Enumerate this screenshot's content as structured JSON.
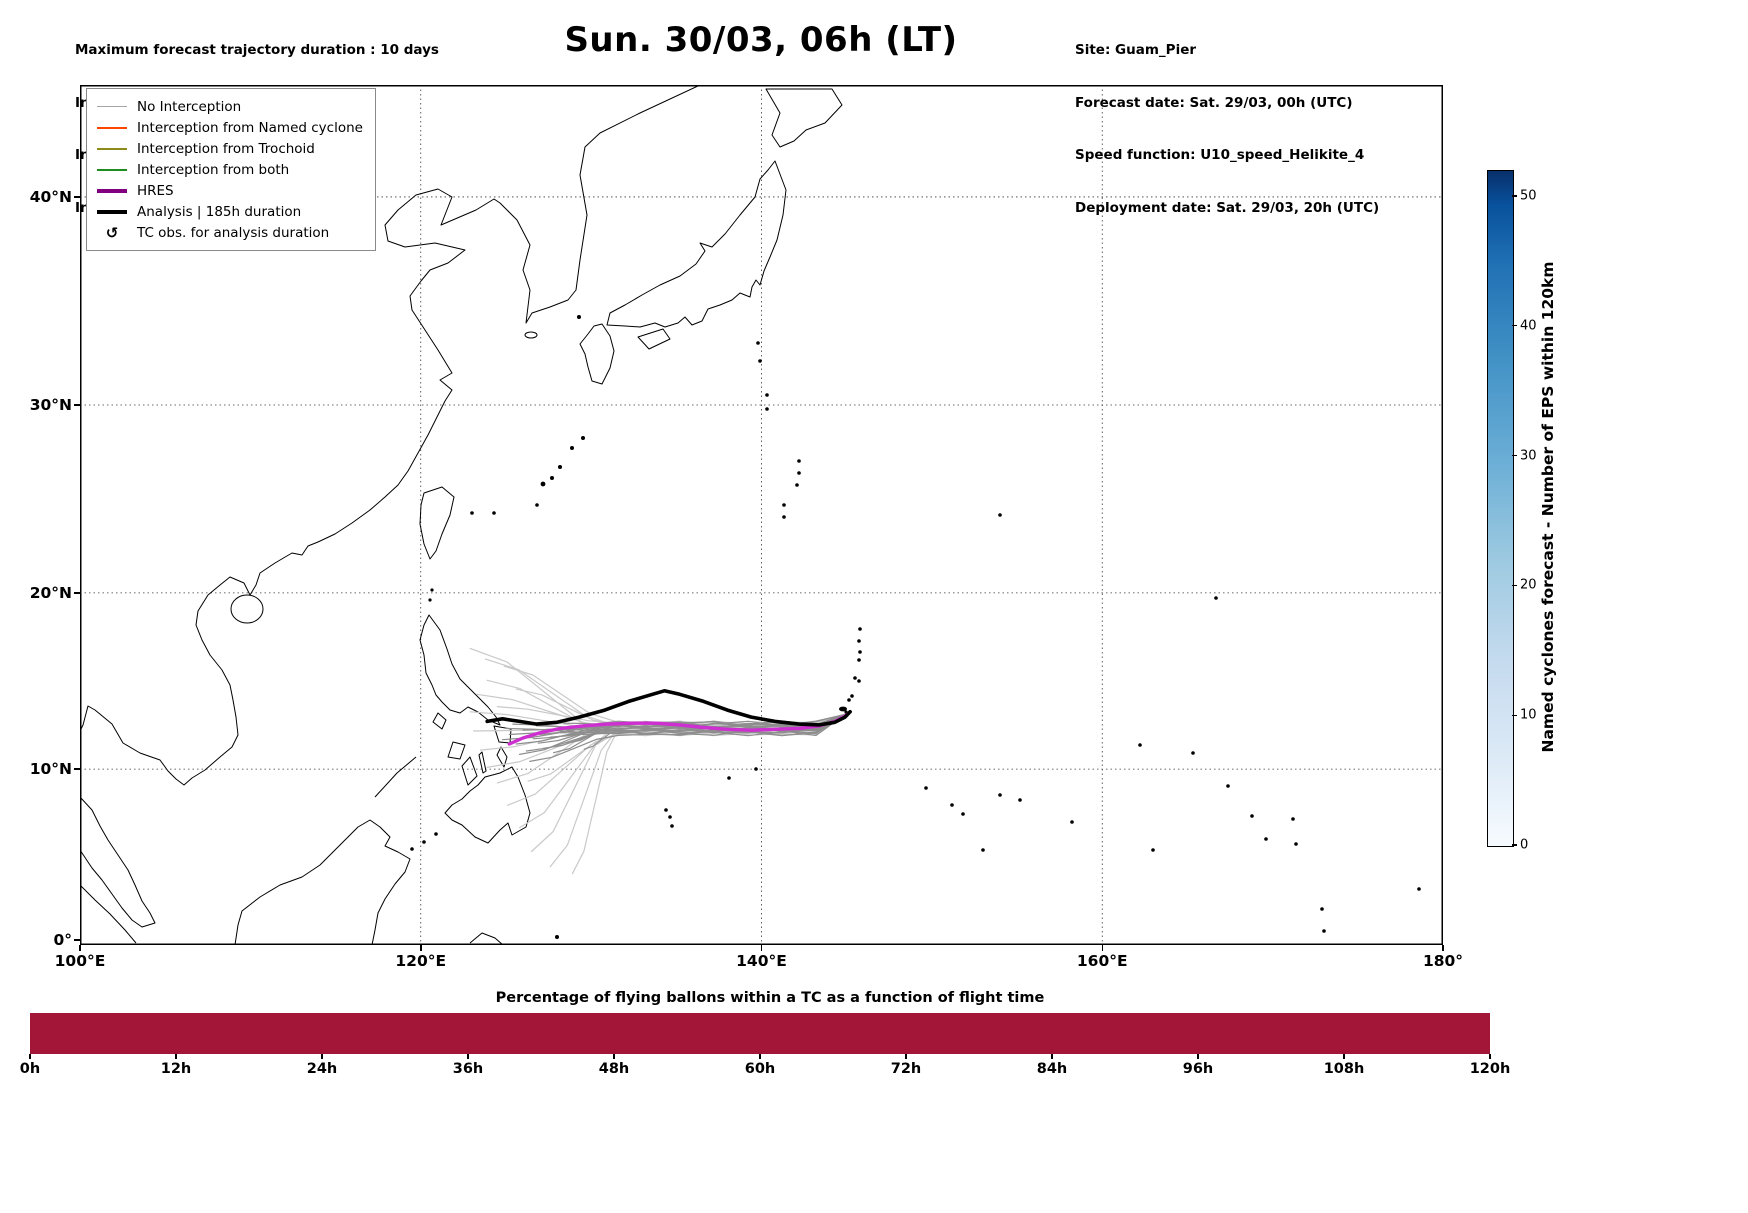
{
  "header_left": {
    "lines": [
      "Maximum forecast trajectory duration : 10 days",
      "Intercept distance: 300km",
      "Intercept RW2 (EPS):  30km/h2",
      "Intercept RW2 (HRES): 30km/h2"
    ]
  },
  "title": "Sun. 30/03, 06h (LT)",
  "header_right": {
    "lines": [
      "Site: Guam_Pier",
      "Forecast date: Sat. 29/03, 00h (UTC)",
      "Speed function: U10_speed_Helikite_4",
      "Deployment date: Sat. 29/03, 20h (UTC)"
    ]
  },
  "chart_data": [
    {
      "type": "map-trajectories",
      "projection": "mercator",
      "extent": {
        "lon_min": 100,
        "lon_max": 180,
        "lat_min": 0,
        "lat_max": 44.8
      },
      "x_ticks": [
        {
          "lon": 100,
          "label": "100°E"
        },
        {
          "lon": 120,
          "label": "120°E"
        },
        {
          "lon": 140,
          "label": "140°E"
        },
        {
          "lon": 160,
          "label": "160°E"
        },
        {
          "lon": 180,
          "label": "180°"
        }
      ],
      "y_ticks": [
        {
          "lat": 0,
          "label": "0°"
        },
        {
          "lat": 10,
          "label": "10°N"
        },
        {
          "lat": 20,
          "label": "20°N"
        },
        {
          "lat": 30,
          "label": "30°N"
        },
        {
          "lat": 40,
          "label": "40°N"
        }
      ],
      "gridlines": {
        "lons": [
          120,
          140,
          160
        ],
        "lats": [
          10,
          20,
          30,
          40
        ]
      },
      "legend": [
        {
          "label": "No Interception",
          "color": "#a6a6a6",
          "lw": 1.5
        },
        {
          "label": "Interception from Named cyclone",
          "color": "#ff4500",
          "lw": 2
        },
        {
          "label": "Interception from Trochoid",
          "color": "#8f8a1c",
          "lw": 2
        },
        {
          "label": "Interception from both",
          "color": "#1e8c1e",
          "lw": 2
        },
        {
          "label": "HRES",
          "color": "#800080",
          "lw": 4
        },
        {
          "label": "Analysis | 185h duration",
          "color": "#000000",
          "lw": 4
        },
        {
          "label": "TC obs. for analysis duration",
          "symbol": "↺"
        }
      ],
      "analysis_color": "#000000",
      "hres_color": "#cd2fd0",
      "ensemble_colors": {
        "light": "#c9c9c9",
        "mid": "#8e8e8e"
      },
      "analysis": [
        [
          123.9,
          12.75
        ],
        [
          124.8,
          12.9
        ],
        [
          125.8,
          12.75
        ],
        [
          126.8,
          12.6
        ],
        [
          128.0,
          12.7
        ],
        [
          129.3,
          13.0
        ],
        [
          130.8,
          13.4
        ],
        [
          132.2,
          13.9
        ],
        [
          133.6,
          14.3
        ],
        [
          134.3,
          14.5
        ],
        [
          135.2,
          14.3
        ],
        [
          136.6,
          13.9
        ],
        [
          138.0,
          13.4
        ],
        [
          139.4,
          13.0
        ],
        [
          140.8,
          12.75
        ],
        [
          142.2,
          12.6
        ],
        [
          143.4,
          12.55
        ],
        [
          144.3,
          12.7
        ],
        [
          144.9,
          13.0
        ],
        [
          145.2,
          13.3
        ]
      ],
      "hres": [
        [
          125.2,
          11.45
        ],
        [
          126.0,
          11.8
        ],
        [
          127.0,
          12.1
        ],
        [
          128.2,
          12.35
        ],
        [
          129.6,
          12.5
        ],
        [
          131.0,
          12.6
        ],
        [
          132.4,
          12.65
        ],
        [
          133.8,
          12.65
        ],
        [
          135.2,
          12.55
        ],
        [
          136.6,
          12.4
        ],
        [
          138.0,
          12.3
        ],
        [
          139.4,
          12.25
        ],
        [
          140.8,
          12.3
        ],
        [
          142.2,
          12.35
        ],
        [
          143.4,
          12.5
        ],
        [
          144.3,
          12.75
        ],
        [
          144.9,
          13.05
        ],
        [
          145.2,
          13.3
        ]
      ],
      "ensemble": {
        "start": [
          144.9,
          13.15
        ],
        "members_light": [
          [
            122.9,
            16.9
          ],
          [
            123.8,
            16.3
          ],
          [
            124.9,
            15.9
          ],
          [
            123.9,
            15.1
          ],
          [
            123.3,
            14.3
          ],
          [
            122.9,
            13.3
          ],
          [
            123.1,
            12.2
          ],
          [
            123.5,
            11.1
          ],
          [
            123.9,
            10.1
          ],
          [
            124.5,
            9.2
          ],
          [
            125.1,
            7.9
          ],
          [
            125.8,
            6.6
          ],
          [
            126.5,
            5.2
          ],
          [
            127.6,
            4.3
          ],
          [
            128.9,
            3.9
          ],
          [
            126.3,
            9.3
          ],
          [
            125.6,
            14.6
          ],
          [
            124.5,
            13.6
          ]
        ],
        "members_mid": [
          [
            124.8,
            11.7
          ],
          [
            125.2,
            12.0
          ],
          [
            125.0,
            12.35
          ],
          [
            125.6,
            11.45
          ],
          [
            126.2,
            11.05
          ],
          [
            125.4,
            12.6
          ],
          [
            126.0,
            12.25
          ],
          [
            126.6,
            11.75
          ],
          [
            125.8,
            10.85
          ],
          [
            126.4,
            10.45
          ],
          [
            127.2,
            11.2
          ],
          [
            127.0,
            12.0
          ],
          [
            126.8,
            12.5
          ],
          [
            127.6,
            11.85
          ],
          [
            128.2,
            12.1
          ],
          [
            127.8,
            10.95
          ],
          [
            128.6,
            11.5
          ],
          [
            129.2,
            12.0
          ],
          [
            128.4,
            12.65
          ],
          [
            129.6,
            11.15
          ],
          [
            127.4,
            12.3
          ],
          [
            126.9,
            11.5
          ]
        ]
      },
      "colorbar": {
        "label": "Named cyclones forecast - Number of EPS within 120km",
        "ticks": [
          0,
          10,
          20,
          30,
          40,
          50
        ],
        "vmax": 52,
        "color_low": "#f7fbff",
        "color_high": "#08306b"
      }
    },
    {
      "type": "bar",
      "title": "Percentage of flying ballons within a TC as a function of flight time",
      "x_tick_labels": [
        "0h",
        "12h",
        "24h",
        "36h",
        "48h",
        "60h",
        "72h",
        "84h",
        "96h",
        "108h",
        "120h"
      ],
      "x_range_hours": [
        0,
        120
      ],
      "bar_color": "#a31638",
      "bar_extent_hours": [
        0,
        120
      ]
    }
  ]
}
